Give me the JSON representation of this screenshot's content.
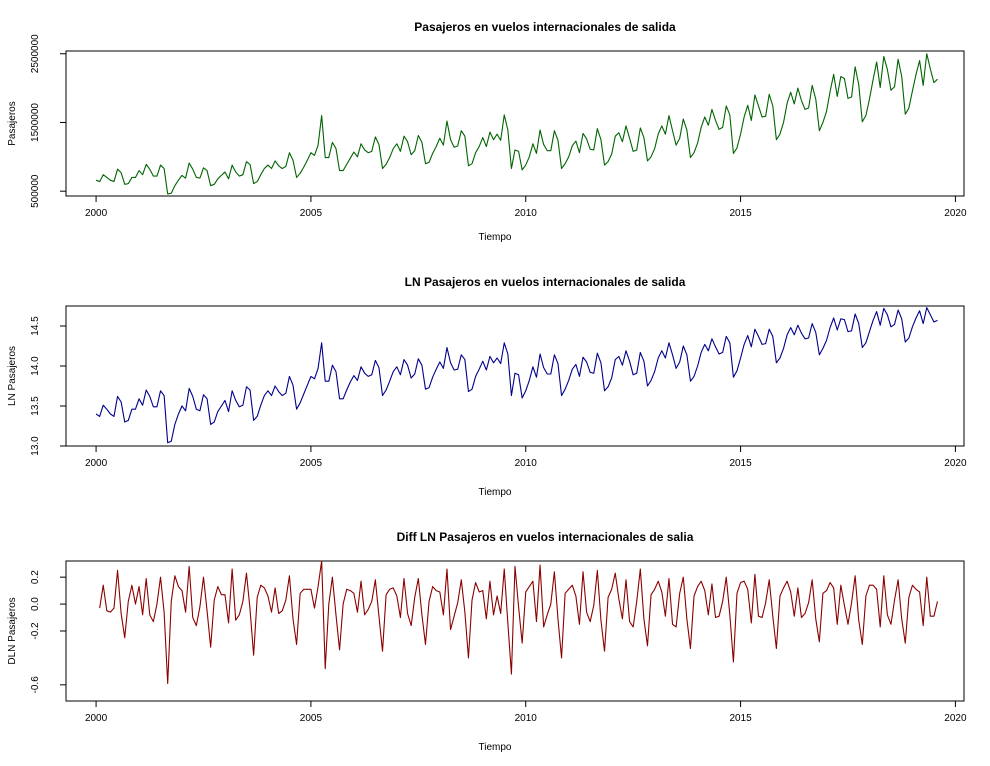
{
  "chart_data": [
    {
      "type": "line",
      "title": "Pasajeros en vuelos internacionales de salida",
      "xlabel": "Tiempo",
      "ylabel": "Pasajeros",
      "xlim": [
        1999.3,
        2020.2
      ],
      "ylim": [
        430000,
        2540000
      ],
      "xticks": [
        "2000",
        "2005",
        "2010",
        "2015",
        "2020"
      ],
      "yticks": [
        "500000",
        "1500000",
        "2500000"
      ],
      "series": [
        {
          "color": "#006400",
          "x_start": 2000.0,
          "x_step": 0.0833333,
          "values": [
            660000,
            640000,
            740000,
            700000,
            660000,
            640000,
            820000,
            770000,
            600000,
            610000,
            700000,
            700000,
            800000,
            740000,
            890000,
            820000,
            720000,
            720000,
            880000,
            830000,
            460000,
            470000,
            580000,
            660000,
            730000,
            690000,
            910000,
            820000,
            700000,
            690000,
            840000,
            800000,
            580000,
            600000,
            680000,
            730000,
            780000,
            680000,
            880000,
            780000,
            720000,
            740000,
            930000,
            890000,
            610000,
            640000,
            740000,
            830000,
            880000,
            830000,
            940000,
            870000,
            830000,
            860000,
            1060000,
            950000,
            700000,
            760000,
            850000,
            950000,
            1060000,
            1020000,
            1170000,
            1600000,
            990000,
            990000,
            1210000,
            1120000,
            800000,
            800000,
            890000,
            980000,
            1070000,
            1000000,
            1190000,
            1100000,
            1060000,
            1080000,
            1290000,
            1180000,
            830000,
            890000,
            990000,
            1120000,
            1190000,
            1080000,
            1300000,
            1220000,
            1030000,
            1090000,
            1310000,
            1210000,
            900000,
            920000,
            1050000,
            1150000,
            1270000,
            1170000,
            1520000,
            1250000,
            1140000,
            1160000,
            1380000,
            1300000,
            870000,
            900000,
            1060000,
            1150000,
            1280000,
            1150000,
            1360000,
            1250000,
            1330000,
            1240000,
            1610000,
            1390000,
            830000,
            1100000,
            1080000,
            810000,
            880000,
            1000000,
            1190000,
            1050000,
            1390000,
            1180000,
            1090000,
            1090000,
            1380000,
            1240000,
            830000,
            900000,
            1000000,
            1160000,
            1230000,
            1060000,
            1340000,
            1260000,
            1110000,
            1100000,
            1410000,
            1250000,
            880000,
            930000,
            1040000,
            1300000,
            1350000,
            1220000,
            1450000,
            1270000,
            1080000,
            1100000,
            1420000,
            1280000,
            940000,
            1000000,
            1120000,
            1330000,
            1450000,
            1330000,
            1600000,
            1380000,
            1170000,
            1270000,
            1550000,
            1390000,
            990000,
            1060000,
            1200000,
            1430000,
            1580000,
            1460000,
            1690000,
            1530000,
            1400000,
            1430000,
            1740000,
            1610000,
            1050000,
            1130000,
            1330000,
            1580000,
            1750000,
            1530000,
            1900000,
            1740000,
            1580000,
            1590000,
            1910000,
            1740000,
            1250000,
            1330000,
            1500000,
            1780000,
            1940000,
            1770000,
            2000000,
            1820000,
            1690000,
            1710000,
            2040000,
            1840000,
            1380000,
            1500000,
            1660000,
            1950000,
            2200000,
            1880000,
            2170000,
            2140000,
            1850000,
            1870000,
            2310000,
            2050000,
            1510000,
            1600000,
            1840000,
            2120000,
            2380000,
            2010000,
            2460000,
            2270000,
            1970000,
            2020000,
            2420000,
            2170000,
            1620000,
            1710000,
            1960000,
            2200000,
            2400000,
            2040000,
            2500000,
            2280000,
            2080000,
            2130000
          ]
        }
      ]
    },
    {
      "type": "line",
      "title": "LN Pasajeros en vuelos internacionales de salida",
      "xlabel": "Tiempo",
      "ylabel": "LN Pasajeros",
      "xlim": [
        1999.3,
        2020.2
      ],
      "ylim": [
        13.0,
        14.75
      ],
      "xticks": [
        "2000",
        "2005",
        "2010",
        "2015",
        "2020"
      ],
      "yticks": [
        "13.0",
        "13.5",
        "14.0",
        "14.5"
      ],
      "series": [
        {
          "color": "#00008B",
          "x_start": 2000.0,
          "x_step": 0.0833333,
          "values": [
            13.4,
            13.37,
            13.51,
            13.46,
            13.4,
            13.37,
            13.62,
            13.55,
            13.3,
            13.32,
            13.46,
            13.46,
            13.59,
            13.51,
            13.7,
            13.62,
            13.49,
            13.49,
            13.69,
            13.63,
            13.04,
            13.06,
            13.27,
            13.4,
            13.5,
            13.44,
            13.72,
            13.62,
            13.46,
            13.44,
            13.64,
            13.59,
            13.27,
            13.3,
            13.43,
            13.5,
            13.57,
            13.43,
            13.69,
            13.57,
            13.49,
            13.51,
            13.74,
            13.7,
            13.32,
            13.37,
            13.51,
            13.63,
            13.69,
            13.63,
            13.75,
            13.68,
            13.63,
            13.66,
            13.87,
            13.76,
            13.46,
            13.54,
            13.65,
            13.76,
            13.87,
            13.84,
            13.97,
            14.29,
            13.81,
            13.81,
            14.01,
            13.93,
            13.59,
            13.59,
            13.7,
            13.8,
            13.88,
            13.82,
            13.99,
            13.91,
            13.87,
            13.89,
            14.07,
            13.98,
            13.63,
            13.7,
            13.81,
            13.93,
            13.99,
            13.89,
            14.08,
            14.01,
            13.85,
            13.9,
            14.09,
            14.01,
            13.71,
            13.73,
            13.86,
            13.96,
            14.05,
            13.97,
            14.23,
            14.04,
            13.95,
            13.96,
            14.14,
            14.08,
            13.68,
            13.71,
            13.87,
            13.96,
            14.06,
            13.95,
            14.12,
            14.04,
            14.1,
            14.03,
            14.29,
            14.15,
            13.63,
            13.91,
            13.89,
            13.6,
            13.69,
            13.82,
            13.99,
            13.86,
            14.15,
            13.98,
            13.9,
            13.9,
            14.14,
            14.03,
            13.63,
            13.71,
            13.82,
            13.96,
            14.02,
            13.87,
            14.11,
            14.05,
            13.92,
            13.91,
            14.16,
            14.04,
            13.69,
            13.74,
            13.85,
            14.08,
            14.12,
            14.01,
            14.19,
            14.06,
            13.89,
            13.91,
            14.17,
            14.06,
            13.75,
            13.82,
            13.93,
            14.1,
            14.19,
            14.1,
            14.29,
            14.14,
            13.97,
            14.05,
            14.25,
            14.14,
            13.81,
            13.87,
            14.0,
            14.17,
            14.27,
            14.19,
            14.34,
            14.24,
            14.15,
            14.17,
            14.37,
            14.29,
            13.86,
            13.94,
            14.1,
            14.27,
            14.38,
            14.24,
            14.46,
            14.37,
            14.27,
            14.28,
            14.46,
            14.37,
            14.04,
            14.1,
            14.22,
            14.39,
            14.48,
            14.39,
            14.51,
            14.41,
            14.34,
            14.35,
            14.53,
            14.42,
            14.14,
            14.22,
            14.32,
            14.48,
            14.6,
            14.45,
            14.59,
            14.58,
            14.43,
            14.44,
            14.65,
            14.53,
            14.23,
            14.29,
            14.43,
            14.57,
            14.68,
            14.51,
            14.72,
            14.64,
            14.49,
            14.52,
            14.7,
            14.59,
            14.3,
            14.35,
            14.49,
            14.6,
            14.69,
            14.53,
            14.73,
            14.64,
            14.55,
            14.57
          ]
        }
      ]
    },
    {
      "type": "line",
      "title": "Diff LN Pasajeros en vuelos internacionales de salia",
      "xlabel": "Tiempo",
      "ylabel": "DLN Pasajeros",
      "xlim": [
        1999.3,
        2020.2
      ],
      "ylim": [
        -0.72,
        0.32
      ],
      "xticks": [
        "2000",
        "2005",
        "2010",
        "2015",
        "2020"
      ],
      "yticks": [
        "-0.6",
        "-0.2",
        "0.0",
        "0.2"
      ],
      "series": [
        {
          "color": "#8B0000",
          "x_start": 2000.0833,
          "x_step": 0.0833333,
          "values": [
            -0.03,
            0.14,
            -0.05,
            -0.06,
            -0.03,
            0.25,
            -0.07,
            -0.25,
            0.02,
            0.14,
            0.0,
            0.13,
            -0.08,
            0.19,
            -0.08,
            -0.13,
            0.0,
            0.2,
            -0.06,
            -0.59,
            0.02,
            0.21,
            0.13,
            0.1,
            -0.06,
            0.28,
            -0.1,
            -0.16,
            -0.02,
            0.2,
            -0.05,
            -0.32,
            0.03,
            0.13,
            0.07,
            0.07,
            -0.14,
            0.26,
            -0.12,
            -0.08,
            0.02,
            0.23,
            -0.04,
            -0.38,
            0.05,
            0.14,
            0.12,
            0.06,
            -0.06,
            0.12,
            -0.07,
            -0.05,
            0.03,
            0.21,
            -0.11,
            -0.3,
            0.08,
            0.11,
            0.11,
            0.11,
            -0.03,
            0.13,
            0.32,
            -0.48,
            0.0,
            0.2,
            -0.08,
            -0.34,
            0.0,
            0.11,
            0.1,
            0.08,
            -0.06,
            0.17,
            -0.08,
            -0.04,
            0.02,
            0.18,
            -0.09,
            -0.35,
            0.07,
            0.11,
            0.12,
            0.06,
            -0.1,
            0.19,
            -0.07,
            -0.16,
            0.05,
            0.19,
            -0.08,
            -0.3,
            0.02,
            0.13,
            0.1,
            0.09,
            -0.08,
            0.26,
            -0.19,
            -0.09,
            0.01,
            0.18,
            -0.06,
            -0.4,
            0.03,
            0.16,
            0.09,
            0.1,
            -0.11,
            0.17,
            -0.08,
            0.06,
            -0.07,
            0.26,
            -0.14,
            -0.52,
            0.28,
            -0.02,
            -0.29,
            0.09,
            0.13,
            0.17,
            -0.13,
            0.29,
            -0.17,
            -0.08,
            0.0,
            0.24,
            -0.11,
            -0.4,
            0.08,
            0.11,
            0.14,
            0.06,
            -0.15,
            0.24,
            -0.06,
            -0.13,
            -0.01,
            0.25,
            -0.12,
            -0.35,
            0.05,
            0.11,
            0.23,
            0.04,
            -0.11,
            0.18,
            -0.13,
            -0.17,
            0.02,
            0.26,
            -0.11,
            -0.31,
            0.07,
            0.11,
            0.17,
            0.09,
            -0.09,
            0.19,
            -0.15,
            -0.17,
            0.08,
            0.2,
            -0.11,
            -0.33,
            0.06,
            0.13,
            0.17,
            0.1,
            -0.08,
            0.15,
            -0.1,
            -0.09,
            0.02,
            0.2,
            -0.08,
            -0.43,
            0.08,
            0.16,
            0.17,
            0.11,
            -0.14,
            0.22,
            -0.09,
            -0.1,
            0.01,
            0.18,
            -0.09,
            -0.33,
            0.06,
            0.12,
            0.17,
            0.09,
            -0.09,
            0.12,
            -0.1,
            -0.07,
            0.01,
            0.18,
            -0.11,
            -0.28,
            0.08,
            0.1,
            0.16,
            0.12,
            -0.15,
            0.14,
            -0.01,
            -0.15,
            0.01,
            0.21,
            -0.12,
            -0.3,
            0.06,
            0.14,
            0.14,
            0.11,
            -0.17,
            0.21,
            -0.08,
            -0.15,
            0.03,
            0.18,
            -0.11,
            -0.29,
            0.05,
            0.14,
            0.11,
            0.09,
            -0.16,
            0.2,
            -0.09,
            -0.09,
            0.02
          ]
        }
      ]
    }
  ]
}
